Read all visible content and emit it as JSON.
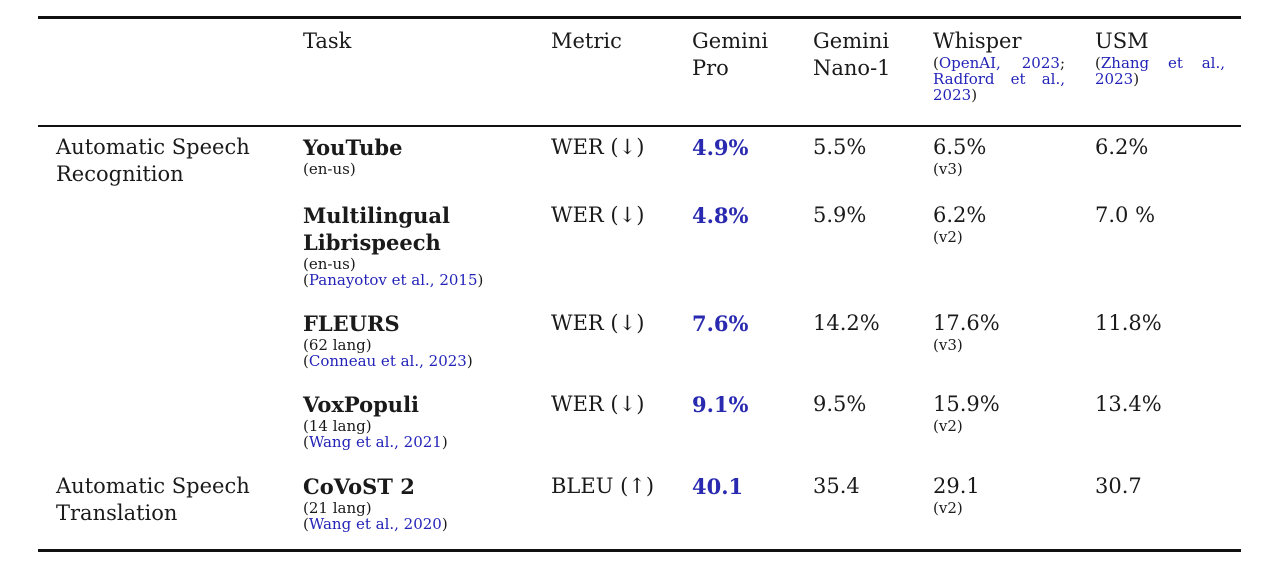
{
  "header": {
    "task": "Task",
    "metric": "Metric",
    "gemini_pro": [
      "Gemini",
      "Pro"
    ],
    "gemini_nano": [
      "Gemini",
      "Nano-1"
    ],
    "whisper": {
      "name": "Whisper",
      "cite_open": "(",
      "cite1": "OpenAI, 2023",
      "sep": ";",
      "cite2_line1": "Radford et al.,",
      "cite2_line2": "2023",
      "cite_close": ")"
    },
    "usm": {
      "name": "USM",
      "cite_open": "(",
      "cite_line1": "Zhang et al.,",
      "cite_line2": "2023",
      "cite_close": ")"
    }
  },
  "groups": [
    {
      "label": [
        "Automatic Speech",
        "Recognition"
      ]
    },
    {
      "label": [
        "Automatic Speech",
        "Translation"
      ]
    }
  ],
  "rows": [
    {
      "task": [
        "YouTube"
      ],
      "sub": "(en-us)",
      "cite": "",
      "metric": "WER (↓)",
      "gemini_pro": "4.9%",
      "gemini_nano": "5.5%",
      "whisper": "6.5%",
      "whisper_ver": "(v3)",
      "usm": "6.2%"
    },
    {
      "task": [
        "Multilingual",
        "Librispeech"
      ],
      "sub": "(en-us)",
      "cite": "Panayotov et al., 2015",
      "metric": "WER (↓)",
      "gemini_pro": "4.8%",
      "gemini_nano": "5.9%",
      "whisper": "6.2%",
      "whisper_ver": "(v2)",
      "usm": "7.0 %"
    },
    {
      "task": [
        "FLEURS"
      ],
      "sub": "(62 lang)",
      "cite": "Conneau et al., 2023",
      "metric": "WER (↓)",
      "gemini_pro": "7.6%",
      "gemini_nano": "14.2%",
      "whisper": "17.6%",
      "whisper_ver": "(v3)",
      "usm": "11.8%"
    },
    {
      "task": [
        "VoxPopuli"
      ],
      "sub": "(14 lang)",
      "cite": "Wang et al., 2021",
      "metric": "WER (↓)",
      "gemini_pro": "9.1%",
      "gemini_nano": "9.5%",
      "whisper": "15.9%",
      "whisper_ver": "(v2)",
      "usm": "13.4%"
    },
    {
      "task": [
        "CoVoST 2"
      ],
      "sub": "(21 lang)",
      "cite": "Wang et al., 2020",
      "metric": "BLEU (↑)",
      "gemini_pro": "40.1",
      "gemini_nano": "35.4",
      "whisper": "29.1",
      "whisper_ver": "(v2)",
      "usm": "30.7"
    }
  ]
}
